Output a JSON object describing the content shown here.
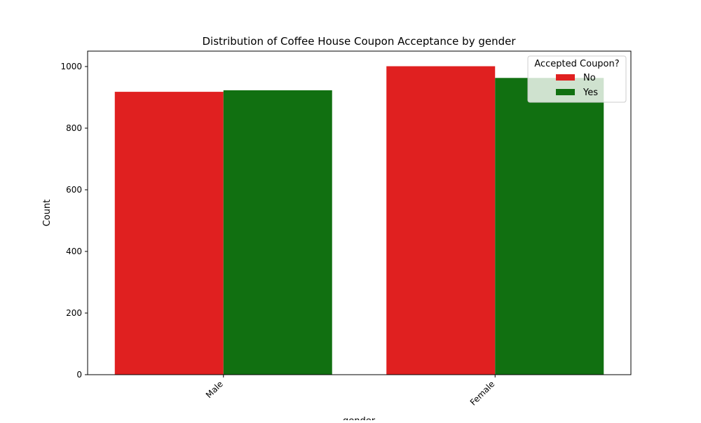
{
  "chart_data": {
    "type": "bar",
    "title": "Distribution of Coffee House Coupon Acceptance by gender",
    "xlabel": "gender",
    "ylabel": "Count",
    "categories": [
      "Male",
      "Female"
    ],
    "series": [
      {
        "name": "No",
        "values": [
          918,
          1001
        ],
        "color": "#e02020"
      },
      {
        "name": "Yes",
        "values": [
          923,
          963
        ],
        "color": "#117011"
      }
    ],
    "ylim": [
      0,
      1050
    ],
    "yticks": [
      0,
      200,
      400,
      600,
      800,
      1000
    ],
    "grid": false,
    "legend": {
      "title": "Accepted Coupon?",
      "placement": "top-right"
    },
    "xtick_rotation": 45
  }
}
